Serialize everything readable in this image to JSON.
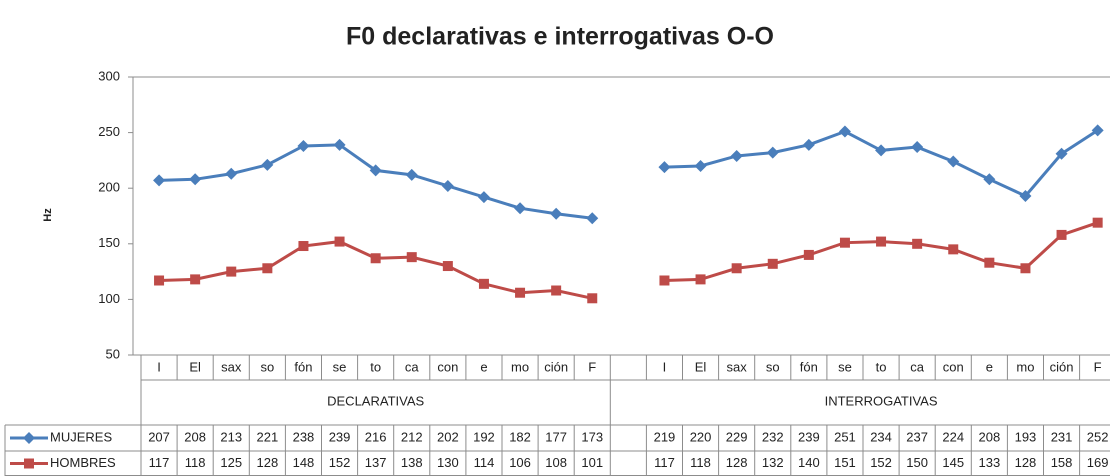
{
  "chart_data": {
    "type": "line",
    "title": "F0 declarativas e interrogativas O-O",
    "y_label": "Hz",
    "categories": [
      "I",
      "El",
      "sax",
      "so",
      "fón",
      "se",
      "to",
      "ca",
      "con",
      "e",
      "mo",
      "ción",
      "F",
      null,
      "I",
      "El",
      "sax",
      "so",
      "fón",
      "se",
      "to",
      "ca",
      "con",
      "e",
      "mo",
      "ción",
      "F"
    ],
    "groups": [
      "DECLARATIVAS",
      "INTERROGATIVAS"
    ],
    "series": [
      {
        "name": "MUJERES",
        "color": "#4a7ebb",
        "marker": "diamond",
        "values": [
          207,
          208,
          213,
          221,
          238,
          239,
          216,
          212,
          202,
          192,
          182,
          177,
          173,
          null,
          219,
          220,
          229,
          232,
          239,
          251,
          234,
          237,
          224,
          208,
          193,
          231,
          252
        ]
      },
      {
        "name": "HOMBRES",
        "color": "#be4b48",
        "marker": "square",
        "values": [
          117,
          118,
          125,
          128,
          148,
          152,
          137,
          138,
          130,
          114,
          106,
          108,
          101,
          null,
          117,
          118,
          128,
          132,
          140,
          151,
          152,
          150,
          145,
          133,
          128,
          158,
          169
        ]
      }
    ],
    "ylim": [
      50,
      300
    ],
    "yticks": [
      50,
      100,
      150,
      200,
      250,
      300
    ],
    "grid": false
  }
}
